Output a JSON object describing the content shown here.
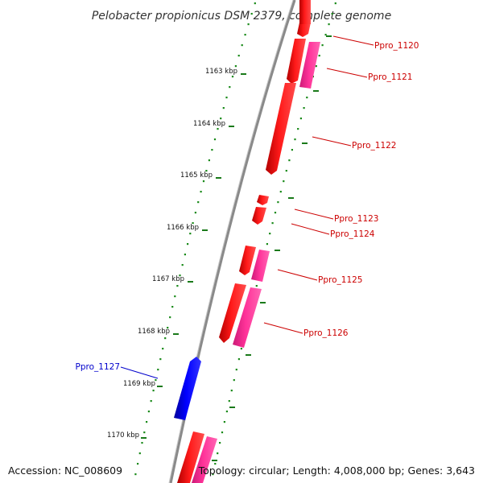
{
  "title": "Pelobacter propionicus DSM 2379, complete genome",
  "footer": {
    "accession": "Accession: NC_008609",
    "topology": "Topology: circular; Length: 4,008,000 bp; Genes: 3,643"
  },
  "colors": {
    "backbone": "#8a8a8a",
    "dots": "#1a8a1a",
    "forward_gene": "#ff0000",
    "forward_gene_alt": "#ff3399",
    "reverse_gene": "#0000ff",
    "forward_label": "#cc0000",
    "reverse_label": "#0000cc"
  },
  "scale_ticks": [
    {
      "label": "1163 kbp"
    },
    {
      "label": "1164 kbp"
    },
    {
      "label": "1165 kbp"
    },
    {
      "label": "1166 kbp"
    },
    {
      "label": "1167 kbp"
    },
    {
      "label": "1168 kbp"
    },
    {
      "label": "1169 kbp"
    },
    {
      "label": "1170 kbp"
    }
  ],
  "gene_labels": [
    {
      "name": "Ppro_1120",
      "strand": "forward"
    },
    {
      "name": "Ppro_1121",
      "strand": "forward"
    },
    {
      "name": "Ppro_1122",
      "strand": "forward"
    },
    {
      "name": "Ppro_1123",
      "strand": "forward"
    },
    {
      "name": "Ppro_1124",
      "strand": "forward"
    },
    {
      "name": "Ppro_1125",
      "strand": "forward"
    },
    {
      "name": "Ppro_1126",
      "strand": "forward"
    },
    {
      "name": "Ppro_1127",
      "strand": "reverse"
    }
  ]
}
